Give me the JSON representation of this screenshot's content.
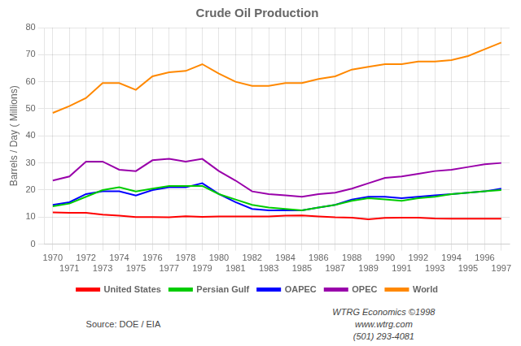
{
  "chart_data": {
    "type": "line",
    "title": "Crude Oil Production",
    "y_label": "Barrels / Day ( Millions)",
    "annotations": [
      "Source: DOE / EIA",
      "WTRG Economics  ©1998",
      "www.wtrg.com",
      "(501) 293-4081"
    ],
    "x": [
      1970,
      1971,
      1972,
      1973,
      1974,
      1975,
      1976,
      1977,
      1978,
      1979,
      1980,
      1981,
      1982,
      1983,
      1984,
      1985,
      1986,
      1987,
      1988,
      1989,
      1990,
      1991,
      1992,
      1993,
      1994,
      1995,
      1996,
      1997
    ],
    "series": [
      {
        "name": "United States",
        "color": "#ff0000",
        "values": [
          11.7,
          11.6,
          11.6,
          10.9,
          10.5,
          10.0,
          10.0,
          9.9,
          10.3,
          10.1,
          10.2,
          10.2,
          10.2,
          10.2,
          10.5,
          10.6,
          10.2,
          9.9,
          9.8,
          9.2,
          9.7,
          9.8,
          9.8,
          9.5,
          9.4,
          9.4,
          9.4,
          9.4
        ]
      },
      {
        "name": "Persian Gulf",
        "color": "#00cc00",
        "values": [
          14.0,
          15.0,
          17.5,
          20.0,
          21.0,
          19.5,
          20.5,
          21.5,
          21.5,
          21.5,
          18.5,
          16.5,
          14.5,
          13.5,
          13.0,
          12.5,
          13.5,
          14.5,
          16.0,
          17.0,
          16.5,
          16.0,
          17.0,
          17.5,
          18.5,
          19.0,
          19.5,
          20.0
        ]
      },
      {
        "name": "OAPEC",
        "color": "#0000ff",
        "values": [
          14.5,
          15.5,
          18.5,
          19.5,
          19.5,
          18.0,
          20.0,
          21.0,
          21.0,
          22.5,
          18.5,
          15.5,
          13.0,
          12.5,
          12.5,
          12.5,
          13.5,
          14.5,
          16.5,
          17.5,
          17.5,
          17.0,
          17.5,
          18.0,
          18.5,
          19.0,
          19.5,
          20.5
        ]
      },
      {
        "name": "OPEC",
        "color": "#9900aa",
        "values": [
          23.5,
          25.0,
          30.5,
          30.5,
          27.5,
          27.0,
          31.0,
          31.5,
          30.5,
          31.5,
          27.0,
          23.5,
          19.5,
          18.5,
          18.0,
          17.5,
          18.5,
          19.0,
          20.5,
          22.5,
          24.5,
          25.0,
          26.0,
          27.0,
          27.5,
          28.5,
          29.5,
          30.0
        ]
      },
      {
        "name": "World",
        "color": "#ff8800",
        "values": [
          48.5,
          51.0,
          54.0,
          59.5,
          59.5,
          57.0,
          62.0,
          63.5,
          64.0,
          66.5,
          63.0,
          60.0,
          58.5,
          58.5,
          59.5,
          59.5,
          61.0,
          62.0,
          64.5,
          65.5,
          66.5,
          66.5,
          67.5,
          67.5,
          68.0,
          69.5,
          72.0,
          74.5
        ]
      }
    ],
    "xlim": [
      1969.5,
      1997.5
    ],
    "xticks": [
      1970,
      1971,
      1972,
      1973,
      1974,
      1975,
      1976,
      1977,
      1978,
      1979,
      1980,
      1981,
      1982,
      1983,
      1984,
      1985,
      1986,
      1987,
      1988,
      1989,
      1990,
      1991,
      1992,
      1993,
      1994,
      1995,
      1996,
      1997
    ],
    "ylim": [
      0,
      80
    ],
    "yticks": [
      0,
      10,
      20,
      30,
      40,
      50,
      60,
      70,
      80
    ],
    "grid": true,
    "legend": "bottom"
  }
}
